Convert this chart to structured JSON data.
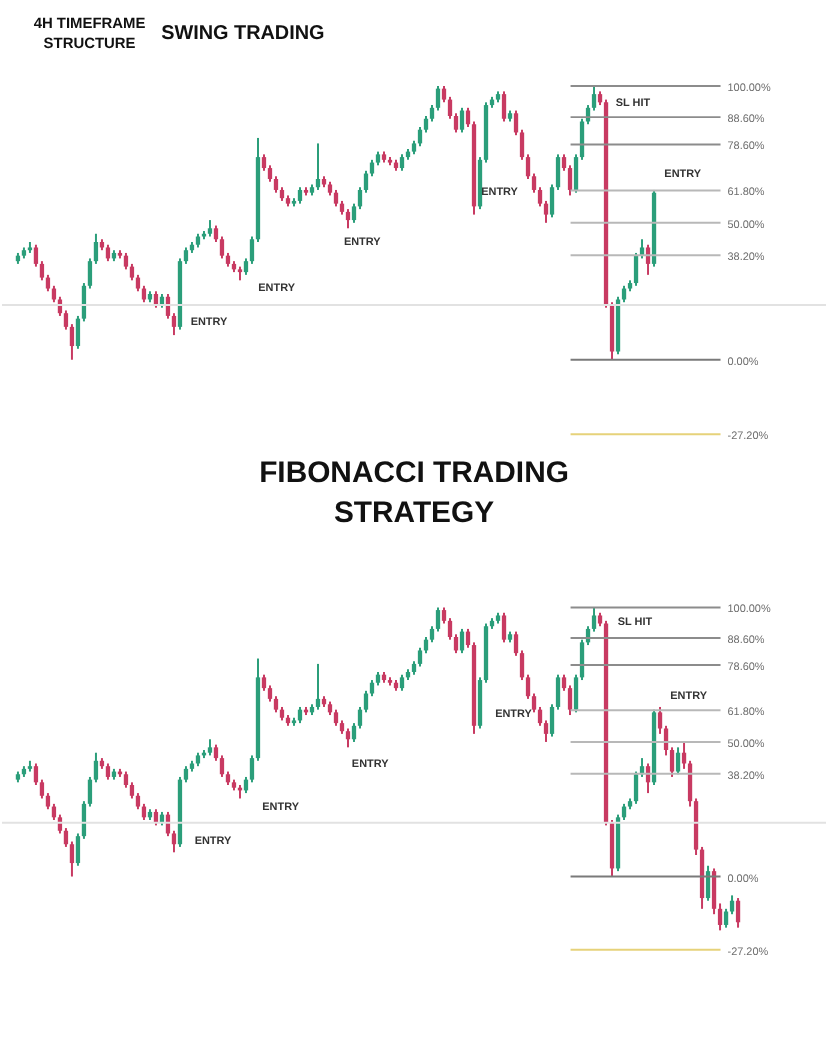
{
  "chart_data": [
    {
      "type": "candlestick",
      "title": "SWING TRADING",
      "subtitle": "4H TIMEFRAME STRUCTURE",
      "tick_labels": "y",
      "ylim": [
        -27.2,
        100
      ],
      "yticks": [
        {
          "value": 100,
          "label": "100.00%"
        },
        {
          "value": 88.6,
          "label": "88.60%"
        },
        {
          "value": 78.6,
          "label": "78.60%"
        },
        {
          "value": 61.8,
          "label": "61.80%"
        },
        {
          "value": 50,
          "label": "50.00%"
        },
        {
          "value": 38.2,
          "label": "38.20%"
        },
        {
          "value": 0,
          "label": "0.00%"
        },
        {
          "value": -27.2,
          "label": "-27.20%"
        }
      ],
      "categories": [
        null,
        null,
        null,
        null,
        null,
        null,
        null,
        null,
        null,
        null,
        null,
        null,
        null,
        null,
        null,
        null,
        null,
        null,
        null,
        null,
        null,
        null,
        null,
        null,
        null,
        null,
        null,
        null,
        null,
        null,
        null,
        null,
        null,
        null,
        null,
        null,
        null,
        null,
        null,
        null,
        null,
        null,
        null,
        null,
        null,
        null,
        null,
        null,
        null,
        null,
        null,
        null,
        null,
        null,
        null,
        null,
        null,
        null,
        null,
        null,
        null,
        null,
        null,
        null,
        null,
        null,
        null,
        null,
        null,
        null,
        null,
        null,
        null,
        null,
        null,
        null,
        null,
        null,
        null,
        null,
        null,
        null,
        null,
        null,
        null,
        null,
        null,
        null,
        null,
        null,
        null,
        null,
        null,
        null,
        null,
        null,
        null,
        null,
        null,
        null,
        null,
        null,
        null,
        null,
        null,
        null,
        null,
        null,
        null,
        null,
        null,
        null,
        null,
        null,
        null,
        null,
        null,
        null,
        null,
        null,
        null
      ],
      "ohlc": [
        [
          36,
          39,
          35,
          38
        ],
        [
          38,
          41,
          37,
          40
        ],
        [
          40,
          43,
          39,
          41
        ],
        [
          41,
          42,
          34,
          35
        ],
        [
          35,
          36,
          29,
          30
        ],
        [
          30,
          31,
          25,
          26
        ],
        [
          26,
          27,
          21,
          22
        ],
        [
          22,
          23,
          16,
          17
        ],
        [
          17,
          18,
          11,
          12
        ],
        [
          12,
          13,
          0,
          5
        ],
        [
          5,
          16,
          4,
          15
        ],
        [
          15,
          28,
          14,
          27
        ],
        [
          27,
          37,
          26,
          36
        ],
        [
          36,
          46,
          35,
          43
        ],
        [
          43,
          44,
          40,
          41
        ],
        [
          41,
          42,
          36,
          37
        ],
        [
          37,
          40,
          36,
          39
        ],
        [
          39,
          40,
          37,
          38
        ],
        [
          38,
          39,
          33,
          34
        ],
        [
          34,
          35,
          29,
          30
        ],
        [
          30,
          31,
          25,
          26
        ],
        [
          26,
          27,
          21,
          22
        ],
        [
          22,
          25,
          21,
          24
        ],
        [
          24,
          25,
          19,
          20
        ],
        [
          20,
          24,
          19,
          23
        ],
        [
          23,
          24,
          15,
          16
        ],
        [
          16,
          17,
          9,
          12
        ],
        [
          12,
          37,
          11,
          36
        ],
        [
          36,
          41,
          35,
          40
        ],
        [
          40,
          43,
          39,
          42
        ],
        [
          42,
          46,
          41,
          45
        ],
        [
          45,
          47,
          44,
          46
        ],
        [
          46,
          51,
          45,
          48
        ],
        [
          48,
          49,
          43,
          44
        ],
        [
          44,
          45,
          37,
          38
        ],
        [
          38,
          39,
          34,
          35
        ],
        [
          35,
          36,
          32,
          33
        ],
        [
          33,
          34,
          29,
          32
        ],
        [
          32,
          37,
          31,
          36
        ],
        [
          36,
          45,
          35,
          44
        ],
        [
          44,
          81,
          43,
          74
        ],
        [
          74,
          75,
          69,
          70
        ],
        [
          70,
          71,
          65,
          66
        ],
        [
          66,
          67,
          61,
          62
        ],
        [
          62,
          63,
          58,
          59
        ],
        [
          59,
          60,
          56,
          57
        ],
        [
          57,
          59,
          56,
          58
        ],
        [
          58,
          63,
          57,
          62
        ],
        [
          62,
          63,
          60,
          61
        ],
        [
          61,
          64,
          60,
          63
        ],
        [
          63,
          79,
          62,
          66
        ],
        [
          66,
          67,
          63,
          64
        ],
        [
          64,
          65,
          60,
          61
        ],
        [
          61,
          62,
          56,
          57
        ],
        [
          57,
          58,
          53,
          54
        ],
        [
          54,
          55,
          48,
          51
        ],
        [
          51,
          57,
          50,
          56
        ],
        [
          56,
          63,
          55,
          62
        ],
        [
          62,
          69,
          61,
          68
        ],
        [
          68,
          73,
          67,
          72
        ],
        [
          72,
          76,
          71,
          75
        ],
        [
          75,
          76,
          72,
          73
        ],
        [
          73,
          74,
          71,
          72
        ],
        [
          72,
          73,
          69,
          70
        ],
        [
          70,
          75,
          69,
          74
        ],
        [
          74,
          77,
          73,
          76
        ],
        [
          76,
          80,
          75,
          79
        ],
        [
          79,
          85,
          78,
          84
        ],
        [
          84,
          89,
          83,
          88
        ],
        [
          88,
          93,
          87,
          92
        ],
        [
          92,
          100,
          91,
          99
        ],
        [
          99,
          100,
          94,
          95
        ],
        [
          95,
          96,
          88,
          89
        ],
        [
          89,
          90,
          83,
          84
        ],
        [
          84,
          92,
          83,
          91
        ],
        [
          91,
          92,
          85,
          86
        ],
        [
          86,
          87,
          53,
          56
        ],
        [
          56,
          74,
          55,
          73
        ],
        [
          73,
          94,
          72,
          93
        ],
        [
          93,
          96,
          92,
          95
        ],
        [
          95,
          98,
          94,
          97
        ],
        [
          97,
          98,
          87,
          88
        ],
        [
          88,
          91,
          87,
          90
        ],
        [
          90,
          91,
          82,
          83
        ],
        [
          83,
          84,
          73,
          74
        ],
        [
          74,
          75,
          66,
          67
        ],
        [
          67,
          68,
          61,
          62
        ],
        [
          62,
          63,
          56,
          57
        ],
        [
          57,
          58,
          50,
          53
        ],
        [
          53,
          64,
          52,
          63
        ],
        [
          63,
          75,
          62,
          74
        ],
        [
          74,
          75,
          69,
          70
        ],
        [
          70,
          71,
          60,
          62
        ],
        [
          62,
          75,
          61,
          74
        ],
        [
          74,
          88,
          73,
          87
        ],
        [
          87,
          93,
          86,
          92
        ],
        [
          92,
          100,
          91,
          97
        ],
        [
          97,
          98,
          93,
          94
        ],
        [
          94,
          95,
          19,
          20
        ],
        [
          20,
          21,
          0,
          3
        ],
        [
          3,
          23,
          2,
          22
        ],
        [
          22,
          27,
          21,
          26
        ],
        [
          26,
          29,
          25,
          28
        ],
        [
          28,
          39,
          27,
          38
        ],
        [
          38,
          44,
          37,
          41
        ],
        [
          41,
          42,
          31,
          35
        ],
        [
          35,
          62,
          34,
          61
        ],
        null,
        null,
        null,
        null,
        null,
        null,
        null,
        null,
        null,
        null,
        null,
        null,
        null,
        null
      ],
      "colors": [
        "#2b9e7a",
        "#2b9e7a",
        "#2b9e7a",
        "#c83a62",
        "#c83a62",
        "#c83a62",
        "#c83a62",
        "#c83a62",
        "#c83a62",
        "#c83a62",
        "#2b9e7a",
        "#2b9e7a",
        "#2b9e7a",
        "#2b9e7a",
        "#c83a62",
        "#c83a62",
        "#2b9e7a",
        "#c83a62",
        "#c83a62",
        "#c83a62",
        "#c83a62",
        "#c83a62",
        "#2b9e7a",
        "#c83a62",
        "#2b9e7a",
        "#c83a62",
        "#c83a62",
        "#2b9e7a",
        "#2b9e7a",
        "#2b9e7a",
        "#2b9e7a",
        "#2b9e7a",
        "#2b9e7a",
        "#c83a62",
        "#c83a62",
        "#c83a62",
        "#c83a62",
        "#c83a62",
        "#2b9e7a",
        "#2b9e7a",
        "#2b9e7a",
        "#c83a62",
        "#c83a62",
        "#c83a62",
        "#c83a62",
        "#c83a62",
        "#2b9e7a",
        "#2b9e7a",
        "#c83a62",
        "#2b9e7a",
        "#2b9e7a",
        "#c83a62",
        "#c83a62",
        "#c83a62",
        "#c83a62",
        "#c83a62",
        "#2b9e7a",
        "#2b9e7a",
        "#2b9e7a",
        "#2b9e7a",
        "#2b9e7a",
        "#c83a62",
        "#c83a62",
        "#c83a62",
        "#2b9e7a",
        "#2b9e7a",
        "#2b9e7a",
        "#2b9e7a",
        "#2b9e7a",
        "#2b9e7a",
        "#2b9e7a",
        "#c83a62",
        "#c83a62",
        "#c83a62",
        "#2b9e7a",
        "#c83a62",
        "#c83a62",
        "#2b9e7a",
        "#2b9e7a",
        "#2b9e7a",
        "#2b9e7a",
        "#c83a62",
        "#2b9e7a",
        "#c83a62",
        "#c83a62",
        "#c83a62",
        "#c83a62",
        "#c83a62",
        "#c83a62",
        "#2b9e7a",
        "#2b9e7a",
        "#c83a62",
        "#c83a62",
        "#2b9e7a",
        "#2b9e7a",
        "#2b9e7a",
        "#2b9e7a",
        "#c83a62",
        "#c83a62",
        "#c83a62",
        "#2b9e7a",
        "#2b9e7a",
        "#2b9e7a",
        "#2b9e7a",
        "#2b9e7a",
        "#c83a62",
        "#2b9e7a",
        null,
        null,
        null,
        null,
        null,
        null,
        null,
        null,
        null,
        null,
        null,
        null,
        null,
        null
      ],
      "ref_lines": [
        {
          "axis": "y",
          "value": 100,
          "color": "#8c8c8c"
        },
        {
          "axis": "y",
          "value": 88.6,
          "color": "#8c8c8c"
        },
        {
          "axis": "y",
          "value": 78.6,
          "color": "#8c8c8c"
        },
        {
          "axis": "y",
          "value": 61.8,
          "color": "#b8b8b8"
        },
        {
          "axis": "y",
          "value": 50,
          "color": "#b8b8b8"
        },
        {
          "axis": "y",
          "value": 38.2,
          "color": "#b8b8b8"
        },
        {
          "axis": "y",
          "value": 0,
          "color": "#7a7a7a"
        },
        {
          "axis": "y",
          "value": -27.2,
          "color": "#e6d27a"
        },
        {
          "axis": "y",
          "value": 20,
          "color": "#e2e2e2"
        }
      ],
      "annotations": [
        "ENTRY",
        "ENTRY",
        "ENTRY",
        "ENTRY",
        "ENTRY",
        "SL HIT"
      ]
    },
    {
      "type": "candlestick",
      "title": "FIBONACCI TRADING STRATEGY",
      "tick_labels": "y",
      "ylim": [
        -27.2,
        100
      ],
      "yticks": [
        {
          "value": 100,
          "label": "100.00%"
        },
        {
          "value": 88.6,
          "label": "88.60%"
        },
        {
          "value": 78.6,
          "label": "78.60%"
        },
        {
          "value": 61.8,
          "label": "61.80%"
        },
        {
          "value": 50,
          "label": "50.00%"
        },
        {
          "value": 38.2,
          "label": "38.20%"
        },
        {
          "value": 0,
          "label": "0.00%"
        },
        {
          "value": -27.2,
          "label": "-27.20%"
        }
      ],
      "categories": [
        null,
        null,
        null,
        null,
        null,
        null,
        null,
        null,
        null,
        null,
        null,
        null,
        null,
        null,
        null,
        null,
        null,
        null,
        null,
        null,
        null,
        null,
        null,
        null,
        null,
        null,
        null,
        null,
        null,
        null,
        null,
        null,
        null,
        null,
        null,
        null,
        null,
        null,
        null,
        null,
        null,
        null,
        null,
        null,
        null,
        null,
        null,
        null,
        null,
        null,
        null,
        null,
        null,
        null,
        null,
        null,
        null,
        null,
        null,
        null,
        null,
        null,
        null,
        null,
        null,
        null,
        null,
        null,
        null,
        null,
        null,
        null,
        null,
        null,
        null,
        null,
        null,
        null,
        null,
        null,
        null,
        null,
        null,
        null,
        null,
        null,
        null,
        null,
        null,
        null,
        null,
        null,
        null,
        null,
        null,
        null,
        null,
        null,
        null,
        null,
        null,
        null,
        null,
        null,
        null,
        null,
        null,
        null,
        null,
        null,
        null,
        null,
        null,
        null,
        null,
        null,
        null,
        null,
        null,
        null,
        null
      ],
      "ohlc": [
        [
          36,
          39,
          35,
          38
        ],
        [
          38,
          41,
          37,
          40
        ],
        [
          40,
          43,
          39,
          41
        ],
        [
          41,
          42,
          34,
          35
        ],
        [
          35,
          36,
          29,
          30
        ],
        [
          30,
          31,
          25,
          26
        ],
        [
          26,
          27,
          21,
          22
        ],
        [
          22,
          23,
          16,
          17
        ],
        [
          17,
          18,
          11,
          12
        ],
        [
          12,
          13,
          0,
          5
        ],
        [
          5,
          16,
          4,
          15
        ],
        [
          15,
          28,
          14,
          27
        ],
        [
          27,
          37,
          26,
          36
        ],
        [
          36,
          46,
          35,
          43
        ],
        [
          43,
          44,
          40,
          41
        ],
        [
          41,
          42,
          36,
          37
        ],
        [
          37,
          40,
          36,
          39
        ],
        [
          39,
          40,
          37,
          38
        ],
        [
          38,
          39,
          33,
          34
        ],
        [
          34,
          35,
          29,
          30
        ],
        [
          30,
          31,
          25,
          26
        ],
        [
          26,
          27,
          21,
          22
        ],
        [
          22,
          25,
          21,
          24
        ],
        [
          24,
          25,
          19,
          20
        ],
        [
          20,
          24,
          19,
          23
        ],
        [
          23,
          24,
          15,
          16
        ],
        [
          16,
          17,
          9,
          12
        ],
        [
          12,
          37,
          11,
          36
        ],
        [
          36,
          41,
          35,
          40
        ],
        [
          40,
          43,
          39,
          42
        ],
        [
          42,
          46,
          41,
          45
        ],
        [
          45,
          47,
          44,
          46
        ],
        [
          46,
          51,
          45,
          48
        ],
        [
          48,
          49,
          43,
          44
        ],
        [
          44,
          45,
          37,
          38
        ],
        [
          38,
          39,
          34,
          35
        ],
        [
          35,
          36,
          32,
          33
        ],
        [
          33,
          34,
          29,
          32
        ],
        [
          32,
          37,
          31,
          36
        ],
        [
          36,
          45,
          35,
          44
        ],
        [
          44,
          81,
          43,
          74
        ],
        [
          74,
          75,
          69,
          70
        ],
        [
          70,
          71,
          65,
          66
        ],
        [
          66,
          67,
          61,
          62
        ],
        [
          62,
          63,
          58,
          59
        ],
        [
          59,
          60,
          56,
          57
        ],
        [
          57,
          59,
          56,
          58
        ],
        [
          58,
          63,
          57,
          62
        ],
        [
          62,
          63,
          60,
          61
        ],
        [
          61,
          64,
          60,
          63
        ],
        [
          63,
          79,
          62,
          66
        ],
        [
          66,
          67,
          63,
          64
        ],
        [
          64,
          65,
          60,
          61
        ],
        [
          61,
          62,
          56,
          57
        ],
        [
          57,
          58,
          53,
          54
        ],
        [
          54,
          55,
          48,
          51
        ],
        [
          51,
          57,
          50,
          56
        ],
        [
          56,
          63,
          55,
          62
        ],
        [
          62,
          69,
          61,
          68
        ],
        [
          68,
          73,
          67,
          72
        ],
        [
          72,
          76,
          71,
          75
        ],
        [
          75,
          76,
          72,
          73
        ],
        [
          73,
          74,
          71,
          72
        ],
        [
          72,
          73,
          69,
          70
        ],
        [
          70,
          75,
          69,
          74
        ],
        [
          74,
          77,
          73,
          76
        ],
        [
          76,
          80,
          75,
          79
        ],
        [
          79,
          85,
          78,
          84
        ],
        [
          84,
          89,
          83,
          88
        ],
        [
          88,
          93,
          87,
          92
        ],
        [
          92,
          100,
          91,
          99
        ],
        [
          99,
          100,
          94,
          95
        ],
        [
          95,
          96,
          88,
          89
        ],
        [
          89,
          90,
          83,
          84
        ],
        [
          84,
          92,
          83,
          91
        ],
        [
          91,
          92,
          85,
          86
        ],
        [
          86,
          87,
          53,
          56
        ],
        [
          56,
          74,
          55,
          73
        ],
        [
          73,
          94,
          72,
          93
        ],
        [
          93,
          96,
          92,
          95
        ],
        [
          95,
          98,
          94,
          97
        ],
        [
          97,
          98,
          87,
          88
        ],
        [
          88,
          91,
          87,
          90
        ],
        [
          90,
          91,
          82,
          83
        ],
        [
          83,
          84,
          73,
          74
        ],
        [
          74,
          75,
          66,
          67
        ],
        [
          67,
          68,
          61,
          62
        ],
        [
          62,
          63,
          56,
          57
        ],
        [
          57,
          58,
          50,
          53
        ],
        [
          53,
          64,
          52,
          63
        ],
        [
          63,
          75,
          62,
          74
        ],
        [
          74,
          75,
          69,
          70
        ],
        [
          70,
          71,
          60,
          62
        ],
        [
          62,
          75,
          61,
          74
        ],
        [
          74,
          88,
          73,
          87
        ],
        [
          87,
          93,
          86,
          92
        ],
        [
          92,
          100,
          91,
          97
        ],
        [
          97,
          98,
          93,
          94
        ],
        [
          94,
          95,
          19,
          20
        ],
        [
          20,
          21,
          0,
          3
        ],
        [
          3,
          23,
          2,
          22
        ],
        [
          22,
          27,
          21,
          26
        ],
        [
          26,
          29,
          25,
          28
        ],
        [
          28,
          39,
          27,
          38
        ],
        [
          38,
          44,
          37,
          41
        ],
        [
          41,
          42,
          31,
          35
        ],
        [
          35,
          62,
          34,
          61
        ],
        [
          61,
          63,
          53,
          55
        ],
        [
          55,
          56,
          45,
          47
        ],
        [
          47,
          48,
          37,
          39
        ],
        [
          39,
          48,
          38,
          46
        ],
        [
          46,
          50,
          40,
          42
        ],
        [
          42,
          43,
          26,
          28
        ],
        [
          28,
          29,
          8,
          10
        ],
        [
          10,
          11,
          -12,
          -8
        ],
        [
          -8,
          4,
          -9,
          2
        ],
        [
          2,
          3,
          -14,
          -12
        ],
        [
          -12,
          -10,
          -20,
          -18
        ],
        [
          -18,
          -12,
          -19,
          -13
        ],
        [
          -13,
          -7,
          -14,
          -9
        ],
        [
          -9,
          -8,
          -19,
          -17
        ]
      ],
      "colors": [
        "#2b9e7a",
        "#2b9e7a",
        "#2b9e7a",
        "#c83a62",
        "#c83a62",
        "#c83a62",
        "#c83a62",
        "#c83a62",
        "#c83a62",
        "#c83a62",
        "#2b9e7a",
        "#2b9e7a",
        "#2b9e7a",
        "#2b9e7a",
        "#c83a62",
        "#c83a62",
        "#2b9e7a",
        "#c83a62",
        "#c83a62",
        "#c83a62",
        "#c83a62",
        "#c83a62",
        "#2b9e7a",
        "#c83a62",
        "#2b9e7a",
        "#c83a62",
        "#c83a62",
        "#2b9e7a",
        "#2b9e7a",
        "#2b9e7a",
        "#2b9e7a",
        "#2b9e7a",
        "#2b9e7a",
        "#c83a62",
        "#c83a62",
        "#c83a62",
        "#c83a62",
        "#c83a62",
        "#2b9e7a",
        "#2b9e7a",
        "#2b9e7a",
        "#c83a62",
        "#c83a62",
        "#c83a62",
        "#c83a62",
        "#c83a62",
        "#2b9e7a",
        "#2b9e7a",
        "#c83a62",
        "#2b9e7a",
        "#2b9e7a",
        "#c83a62",
        "#c83a62",
        "#c83a62",
        "#c83a62",
        "#c83a62",
        "#2b9e7a",
        "#2b9e7a",
        "#2b9e7a",
        "#2b9e7a",
        "#2b9e7a",
        "#c83a62",
        "#c83a62",
        "#c83a62",
        "#2b9e7a",
        "#2b9e7a",
        "#2b9e7a",
        "#2b9e7a",
        "#2b9e7a",
        "#2b9e7a",
        "#2b9e7a",
        "#c83a62",
        "#c83a62",
        "#c83a62",
        "#2b9e7a",
        "#c83a62",
        "#c83a62",
        "#2b9e7a",
        "#2b9e7a",
        "#2b9e7a",
        "#2b9e7a",
        "#c83a62",
        "#2b9e7a",
        "#c83a62",
        "#c83a62",
        "#c83a62",
        "#c83a62",
        "#c83a62",
        "#c83a62",
        "#2b9e7a",
        "#2b9e7a",
        "#c83a62",
        "#c83a62",
        "#2b9e7a",
        "#2b9e7a",
        "#2b9e7a",
        "#2b9e7a",
        "#c83a62",
        "#c83a62",
        "#c83a62",
        "#2b9e7a",
        "#2b9e7a",
        "#2b9e7a",
        "#2b9e7a",
        "#2b9e7a",
        "#c83a62",
        "#2b9e7a",
        "#c83a62",
        "#c83a62",
        "#c83a62",
        "#2b9e7a",
        "#c83a62",
        "#c83a62",
        "#c83a62",
        "#c83a62",
        "#2b9e7a",
        "#c83a62",
        "#c83a62",
        "#2b9e7a",
        "#2b9e7a",
        "#c83a62"
      ],
      "ref_lines": [
        {
          "axis": "y",
          "value": 100,
          "color": "#8c8c8c"
        },
        {
          "axis": "y",
          "value": 88.6,
          "color": "#8c8c8c"
        },
        {
          "axis": "y",
          "value": 78.6,
          "color": "#8c8c8c"
        },
        {
          "axis": "y",
          "value": 61.8,
          "color": "#b8b8b8"
        },
        {
          "axis": "y",
          "value": 50,
          "color": "#b8b8b8"
        },
        {
          "axis": "y",
          "value": 38.2,
          "color": "#b8b8b8"
        },
        {
          "axis": "y",
          "value": 0,
          "color": "#7a7a7a"
        },
        {
          "axis": "y",
          "value": -27.2,
          "color": "#e6d27a"
        },
        {
          "axis": "y",
          "value": 20,
          "color": "#e2e2e2"
        }
      ],
      "annotations": [
        "ENTRY",
        "ENTRY",
        "ENTRY",
        "ENTRY",
        "ENTRY",
        "SL HIT"
      ]
    }
  ]
}
